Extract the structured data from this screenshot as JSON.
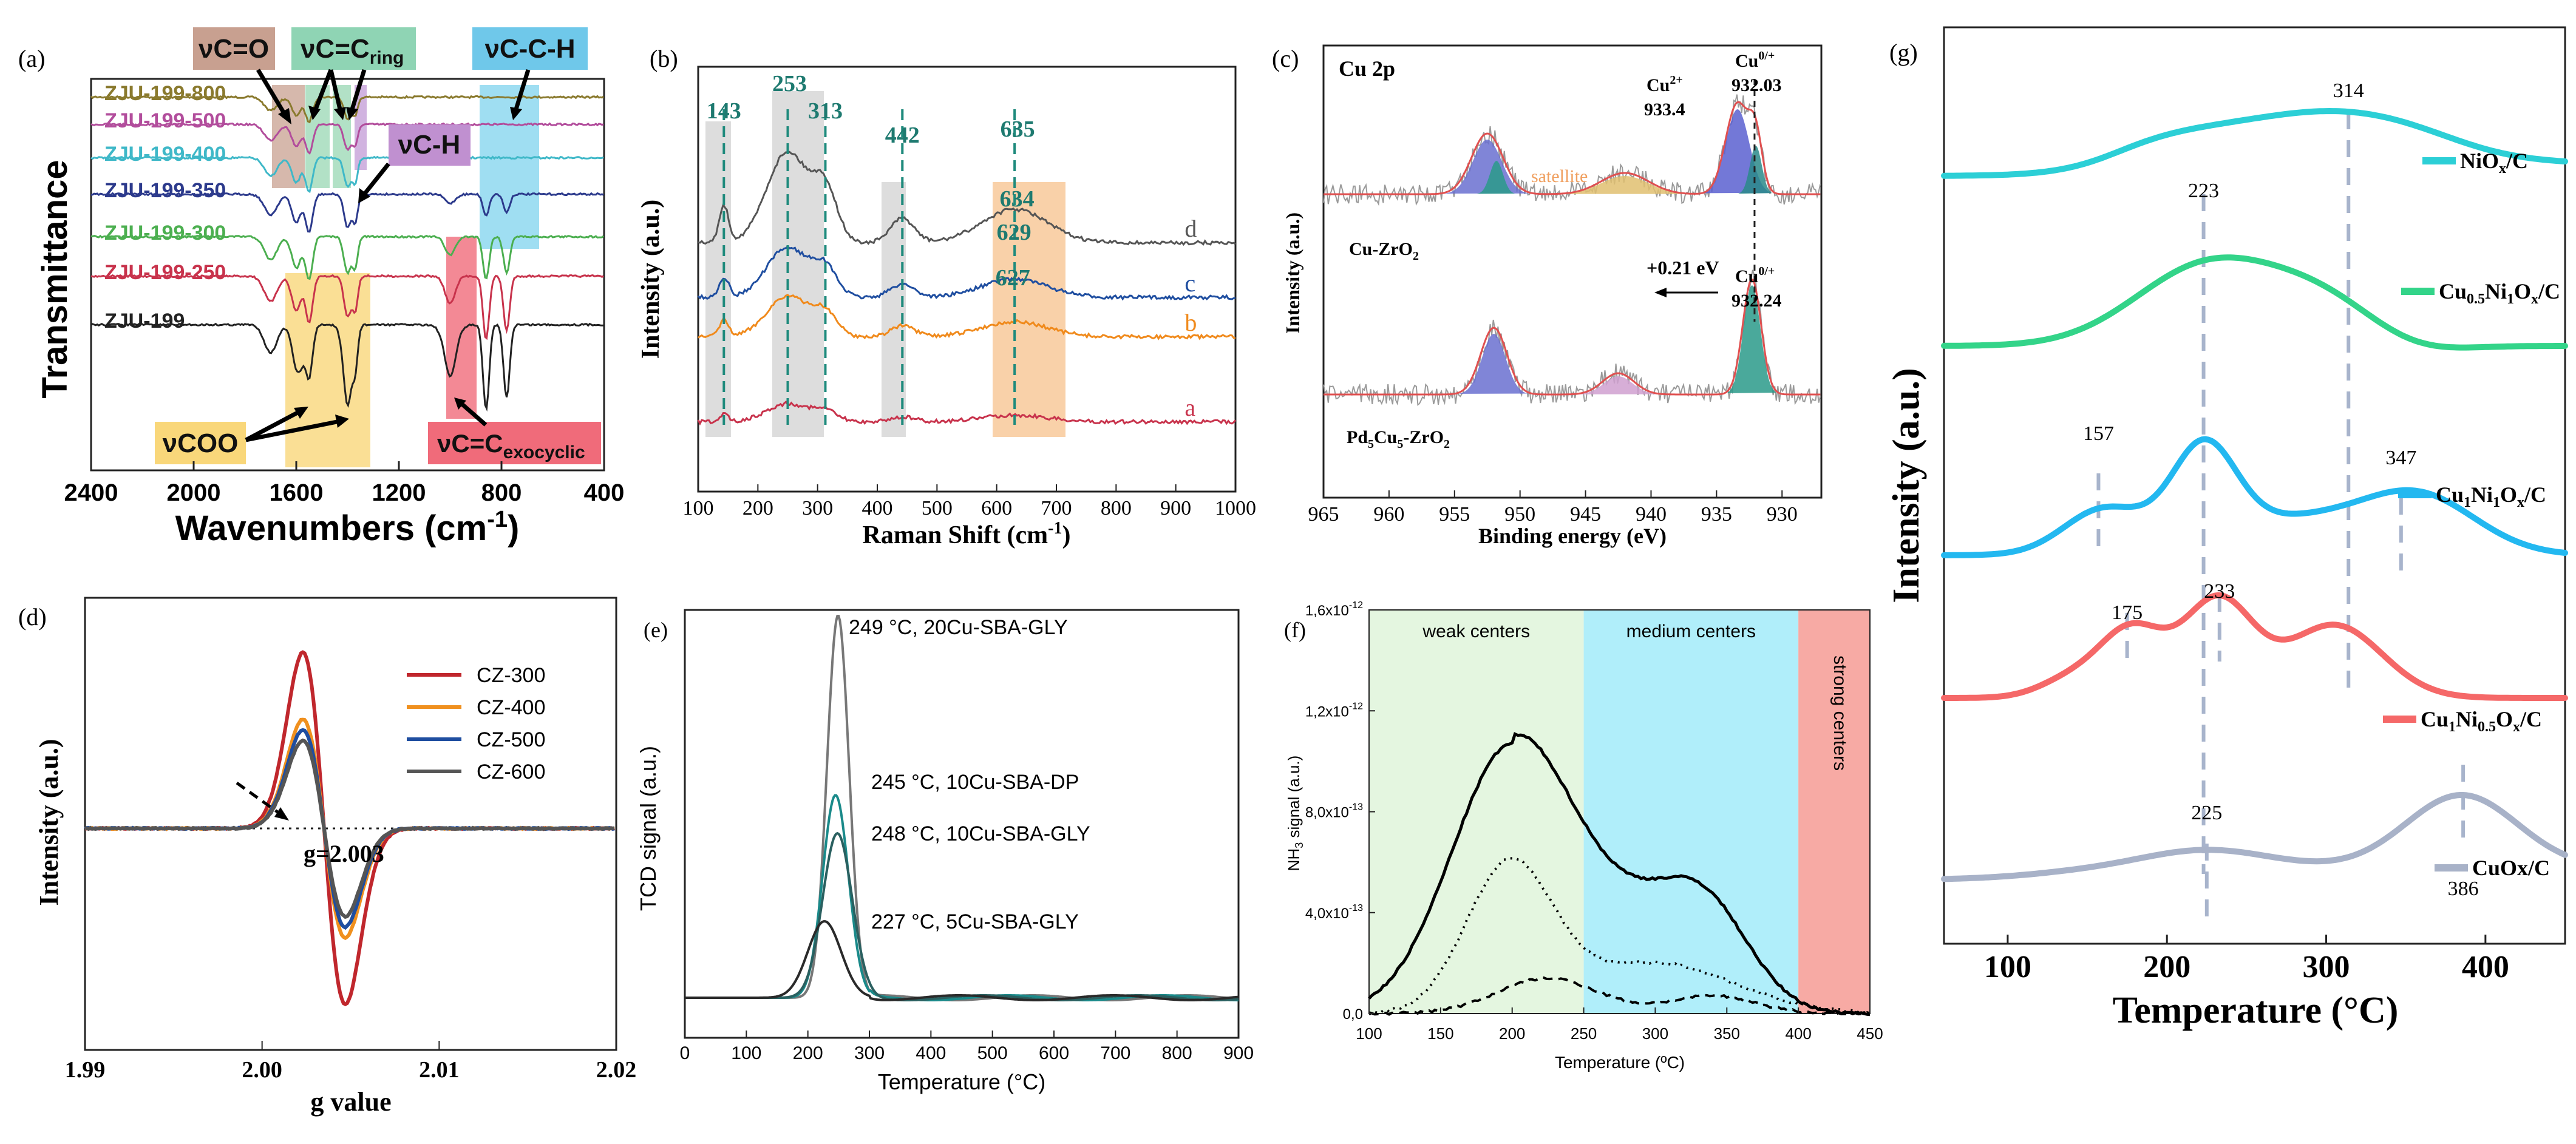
{
  "chart_data": [
    {
      "panel": "(a)",
      "type": "line",
      "xlabel": "Wavenumbers (cm",
      "xlabel_sup": "-1",
      "xlabel_end": ")",
      "ylabel": "Transmittance",
      "xlim": [
        2400,
        400
      ],
      "xticks": [
        "2400",
        "2000",
        "1600",
        "1200",
        "800",
        "400"
      ],
      "series": [
        {
          "name": "ZJU-199-800",
          "color": "#8a7a2e"
        },
        {
          "name": "ZJU-199-500",
          "color": "#b24d9c"
        },
        {
          "name": "ZJU-199-400",
          "color": "#3fb8c8"
        },
        {
          "name": "ZJU-199-350",
          "color": "#2c3a8c"
        },
        {
          "name": "ZJU-199-300",
          "color": "#4caf50"
        },
        {
          "name": "ZJU-199-250",
          "color": "#c8334c"
        },
        {
          "name": "ZJU-199",
          "color": "#222222"
        }
      ],
      "annotations": {
        "vco": "νC=O",
        "vcc_ring": "νC=C",
        "vcc_ring_sub": "ring",
        "vcch": "νC-C-H",
        "vch": "νC-H",
        "vcoo": "νCOO",
        "vcc_exo": "νC=C",
        "vcc_exo_sub": "exocyclic"
      }
    },
    {
      "panel": "(b)",
      "type": "line",
      "xlabel": "Raman Shift (cm",
      "xlabel_sup": "-1",
      "xlabel_end": ")",
      "ylabel": "Intensity (a.u.)",
      "xlim": [
        100,
        1000
      ],
      "xticks": [
        "100",
        "200",
        "300",
        "400",
        "500",
        "600",
        "700",
        "800",
        "900",
        "1000"
      ],
      "peaks": [
        "143",
        "253",
        "313",
        "442",
        "635",
        "634",
        "629",
        "627"
      ],
      "series": [
        {
          "name": "d",
          "color": "#555555"
        },
        {
          "name": "c",
          "color": "#1f4ea0"
        },
        {
          "name": "b",
          "color": "#f08a1c"
        },
        {
          "name": "a",
          "color": "#c8334c"
        }
      ]
    },
    {
      "panel": "(c)",
      "type": "line",
      "title": "Cu 2p",
      "xlabel": "Binding energy (eV)",
      "ylabel": "Intensity (a.u.)",
      "xlim": [
        965,
        927
      ],
      "xticks": [
        "965",
        "960",
        "955",
        "950",
        "945",
        "940",
        "935",
        "930"
      ],
      "labels": {
        "cu2": "Cu",
        "cu2_sup": "2+",
        "cu2_val": "933.4",
        "cu0a": "Cu",
        "cu0a_sup": "0/+",
        "cu0a_val": "932.03",
        "cu0b": "Cu",
        "cu0b_sup": "0/+",
        "cu0b_val": "932.24",
        "satellite": "satellite",
        "shift": "+0.21 eV",
        "sample1": "Cu-ZrO",
        "sample1_sub": "2",
        "sample2_a": "Pd",
        "sample2_b": "Cu",
        "sample2_c": "-ZrO",
        "sub5": "5",
        "sub2": "2"
      }
    },
    {
      "panel": "(d)",
      "type": "line",
      "xlabel": "g value",
      "ylabel": "Intensity (a.u.)",
      "xlim": [
        1.99,
        2.02
      ],
      "xticks": [
        "1.99",
        "2.00",
        "2.01",
        "2.02"
      ],
      "annotation": "g=2.003",
      "series": [
        {
          "name": "CZ-300",
          "color": "#c0272d",
          "amp": 1.0
        },
        {
          "name": "CZ-400",
          "color": "#f0901e",
          "amp": 0.62
        },
        {
          "name": "CZ-500",
          "color": "#1f4ea0",
          "amp": 0.56
        },
        {
          "name": "CZ-600",
          "color": "#555555",
          "amp": 0.5
        }
      ]
    },
    {
      "panel": "(e)",
      "type": "line",
      "xlabel": "Temperature (°C)",
      "ylabel": "TCD signal (a.u.)",
      "xlim": [
        0,
        900
      ],
      "xticks": [
        "0",
        "100",
        "200",
        "300",
        "400",
        "500",
        "600",
        "700",
        "800",
        "900"
      ],
      "series": [
        {
          "name": "249 °C,  20Cu-SBA-GLY",
          "peak_x": 249,
          "height": 1.0
        },
        {
          "name": "245 °C,  10Cu-SBA-DP",
          "peak_x": 245,
          "height": 0.53
        },
        {
          "name": "248 °C,  10Cu-SBA-GLY",
          "peak_x": 248,
          "height": 0.43
        },
        {
          "name": "227 °C,  5Cu-SBA-GLY",
          "peak_x": 227,
          "height": 0.2
        }
      ]
    },
    {
      "panel": "(f)",
      "type": "line",
      "xlabel": "Temperature (ºC)",
      "ylabel": "NH",
      "ylabel_sub": "3",
      "ylabel_end": " signal (a.u.)",
      "xlim": [
        100,
        450
      ],
      "ylim": [
        0,
        1.6e-12
      ],
      "xticks": [
        "100",
        "150",
        "200",
        "250",
        "300",
        "350",
        "400",
        "450"
      ],
      "yticks": [
        "0,0",
        "4,0x10",
        "8,0x10",
        "1,2x10",
        "1,6x10"
      ],
      "yticks_exp": [
        "",
        "-13",
        "-13",
        "-12",
        "-12"
      ],
      "regions": [
        {
          "name": "weak centers",
          "from": 100,
          "to": 250,
          "color": "#e4f6e0"
        },
        {
          "name": "medium centers",
          "from": 250,
          "to": 400,
          "color": "#b0eefa"
        },
        {
          "name": "strong centers",
          "from": 400,
          "to": 450,
          "color": "#f7aaa4"
        }
      ]
    },
    {
      "panel": "(g)",
      "type": "line",
      "xlabel": "Temperature (°C)",
      "ylabel": "Intensity (a.u.)",
      "xlim": [
        60,
        450
      ],
      "xticks": [
        "100",
        "200",
        "300",
        "400"
      ],
      "peak_labels": [
        "314",
        "223",
        "157",
        "347",
        "175",
        "233",
        "225",
        "386"
      ],
      "series": [
        {
          "name": "NiO",
          "sub": "x",
          "end": "/C",
          "color": "#2ccfd6"
        },
        {
          "name": "Cu",
          "sub": "0.5",
          "mid": "Ni",
          "sub2": "1",
          "mid2": "O",
          "sub3": "x",
          "end": "/C",
          "color": "#33d489"
        },
        {
          "name": "Cu",
          "sub": "1",
          "mid": "Ni",
          "sub2": "1",
          "mid2": "O",
          "sub3": "x",
          "end": "/C",
          "color": "#23b8f0"
        },
        {
          "name": "Cu",
          "sub": "1",
          "mid": "Ni",
          "sub2": "0.5",
          "mid2": "O",
          "sub3": "x",
          "end": "/C",
          "color": "#f56868"
        },
        {
          "name": "CuOx/C",
          "color": "#a8b2c8"
        }
      ]
    }
  ]
}
